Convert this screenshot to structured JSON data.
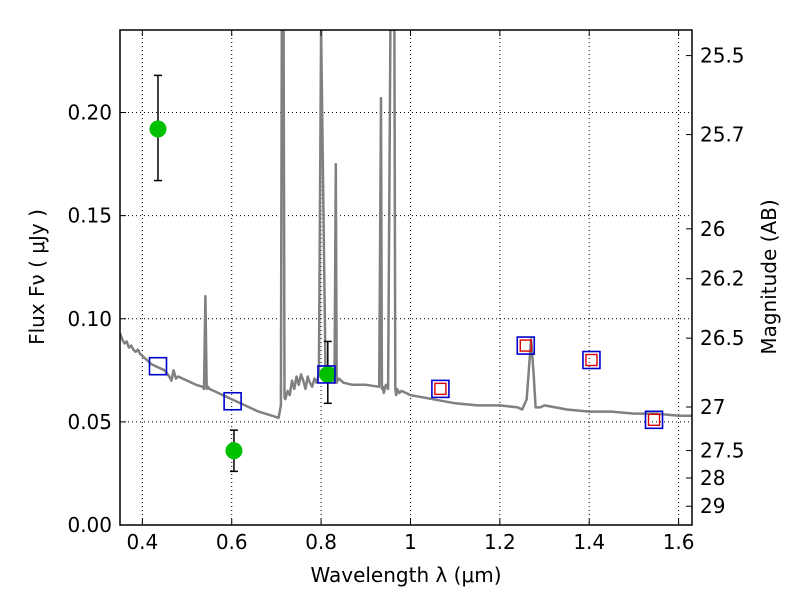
{
  "chart_data": {
    "type": "line",
    "xlabel": "Wavelength  λ (μm)",
    "ylabel": "Flux  Fν  ( μJy )",
    "ylabel_right": "Magnitude (AB)",
    "xlim": [
      0.35,
      1.63
    ],
    "ylim": [
      0.0,
      0.24
    ],
    "grid": true,
    "x_ticks": [
      0.4,
      0.6,
      0.8,
      1.0,
      1.2,
      1.4,
      1.6
    ],
    "x_tick_labels": [
      "0.4",
      "0.6",
      "0.8",
      "1",
      "1.2",
      "1.4",
      "1.6"
    ],
    "y_ticks": [
      0.0,
      0.05,
      0.1,
      0.15,
      0.2
    ],
    "y_tick_labels": [
      "0.00",
      "0.05",
      "0.10",
      "0.15",
      "0.20"
    ],
    "right_ticks": [
      {
        "label": "25.5",
        "flux": 0.2276
      },
      {
        "label": "25.7",
        "flux": 0.1893
      },
      {
        "label": "26",
        "flux": 0.1436
      },
      {
        "label": "26.2",
        "flux": 0.1194
      },
      {
        "label": "26.5",
        "flux": 0.0906
      },
      {
        "label": "27",
        "flux": 0.0572
      },
      {
        "label": "27.5",
        "flux": 0.0361
      },
      {
        "label": "28",
        "flux": 0.0228
      },
      {
        "label": "29",
        "flux": 0.0091
      }
    ],
    "series": [
      {
        "name": "",
        "style": "line",
        "color": "#808080",
        "x": [
          0.35,
          0.355,
          0.36,
          0.365,
          0.37,
          0.375,
          0.38,
          0.385,
          0.39,
          0.395,
          0.4,
          0.41,
          0.42,
          0.43,
          0.44,
          0.45,
          0.46,
          0.465,
          0.47,
          0.475,
          0.48,
          0.5,
          0.52,
          0.535,
          0.538,
          0.541,
          0.544,
          0.547,
          0.55,
          0.57,
          0.6,
          0.63,
          0.66,
          0.69,
          0.705,
          0.71,
          0.712,
          0.714,
          0.716,
          0.718,
          0.72,
          0.725,
          0.73,
          0.735,
          0.74,
          0.745,
          0.75,
          0.755,
          0.76,
          0.765,
          0.77,
          0.775,
          0.78,
          0.785,
          0.79,
          0.795,
          0.8,
          0.81,
          0.82,
          0.825,
          0.83,
          0.833,
          0.835,
          0.837,
          0.84,
          0.85,
          0.87,
          0.9,
          0.93,
          0.934,
          0.936,
          0.938,
          0.94,
          0.945,
          0.95,
          0.955,
          0.958,
          0.96,
          0.962,
          0.964,
          0.966,
          0.968,
          0.97,
          0.975,
          0.98,
          1.0,
          1.05,
          1.1,
          1.15,
          1.2,
          1.24,
          1.25,
          1.26,
          1.27,
          1.275,
          1.28,
          1.29,
          1.3,
          1.35,
          1.4,
          1.45,
          1.5,
          1.55,
          1.6,
          1.63
        ],
        "values": [
          0.093,
          0.09,
          0.088,
          0.089,
          0.086,
          0.087,
          0.085,
          0.084,
          0.085,
          0.083,
          0.082,
          0.08,
          0.078,
          0.077,
          0.076,
          0.075,
          0.072,
          0.07,
          0.075,
          0.071,
          0.072,
          0.07,
          0.068,
          0.067,
          0.066,
          0.111,
          0.066,
          0.067,
          0.066,
          0.064,
          0.061,
          0.058,
          0.055,
          0.053,
          0.052,
          0.058,
          0.24,
          0.24,
          0.24,
          0.062,
          0.061,
          0.065,
          0.063,
          0.07,
          0.066,
          0.072,
          0.068,
          0.073,
          0.07,
          0.066,
          0.072,
          0.069,
          0.067,
          0.071,
          0.069,
          0.073,
          0.24,
          0.072,
          0.07,
          0.073,
          0.069,
          0.175,
          0.069,
          0.07,
          0.071,
          0.069,
          0.068,
          0.068,
          0.067,
          0.207,
          0.066,
          0.067,
          0.064,
          0.068,
          0.066,
          0.24,
          0.24,
          0.24,
          0.24,
          0.24,
          0.066,
          0.063,
          0.066,
          0.064,
          0.065,
          0.063,
          0.061,
          0.059,
          0.058,
          0.058,
          0.057,
          0.056,
          0.061,
          0.09,
          0.075,
          0.057,
          0.057,
          0.058,
          0.056,
          0.055,
          0.055,
          0.054,
          0.054,
          0.053,
          0.053
        ]
      },
      {
        "name": "",
        "style": "points-error",
        "color": "#00c000",
        "x": [
          0.435,
          0.605,
          0.815
        ],
        "values": [
          0.192,
          0.036,
          0.073
        ],
        "err_low": [
          0.025,
          0.01,
          0.014
        ],
        "err_high": [
          0.026,
          0.01,
          0.016
        ]
      },
      {
        "name": "",
        "style": "open-squares",
        "color": "#0000cc",
        "x": [
          0.435,
          0.602,
          0.812,
          1.067,
          1.258,
          1.405,
          1.545
        ],
        "values": [
          0.077,
          0.06,
          0.073,
          0.066,
          0.087,
          0.08,
          0.051
        ]
      },
      {
        "name": "",
        "style": "small-open-squares",
        "color": "#dd0000",
        "x": [
          1.067,
          1.258,
          1.405,
          1.545
        ],
        "values": [
          0.066,
          0.087,
          0.08,
          0.051
        ]
      }
    ]
  }
}
